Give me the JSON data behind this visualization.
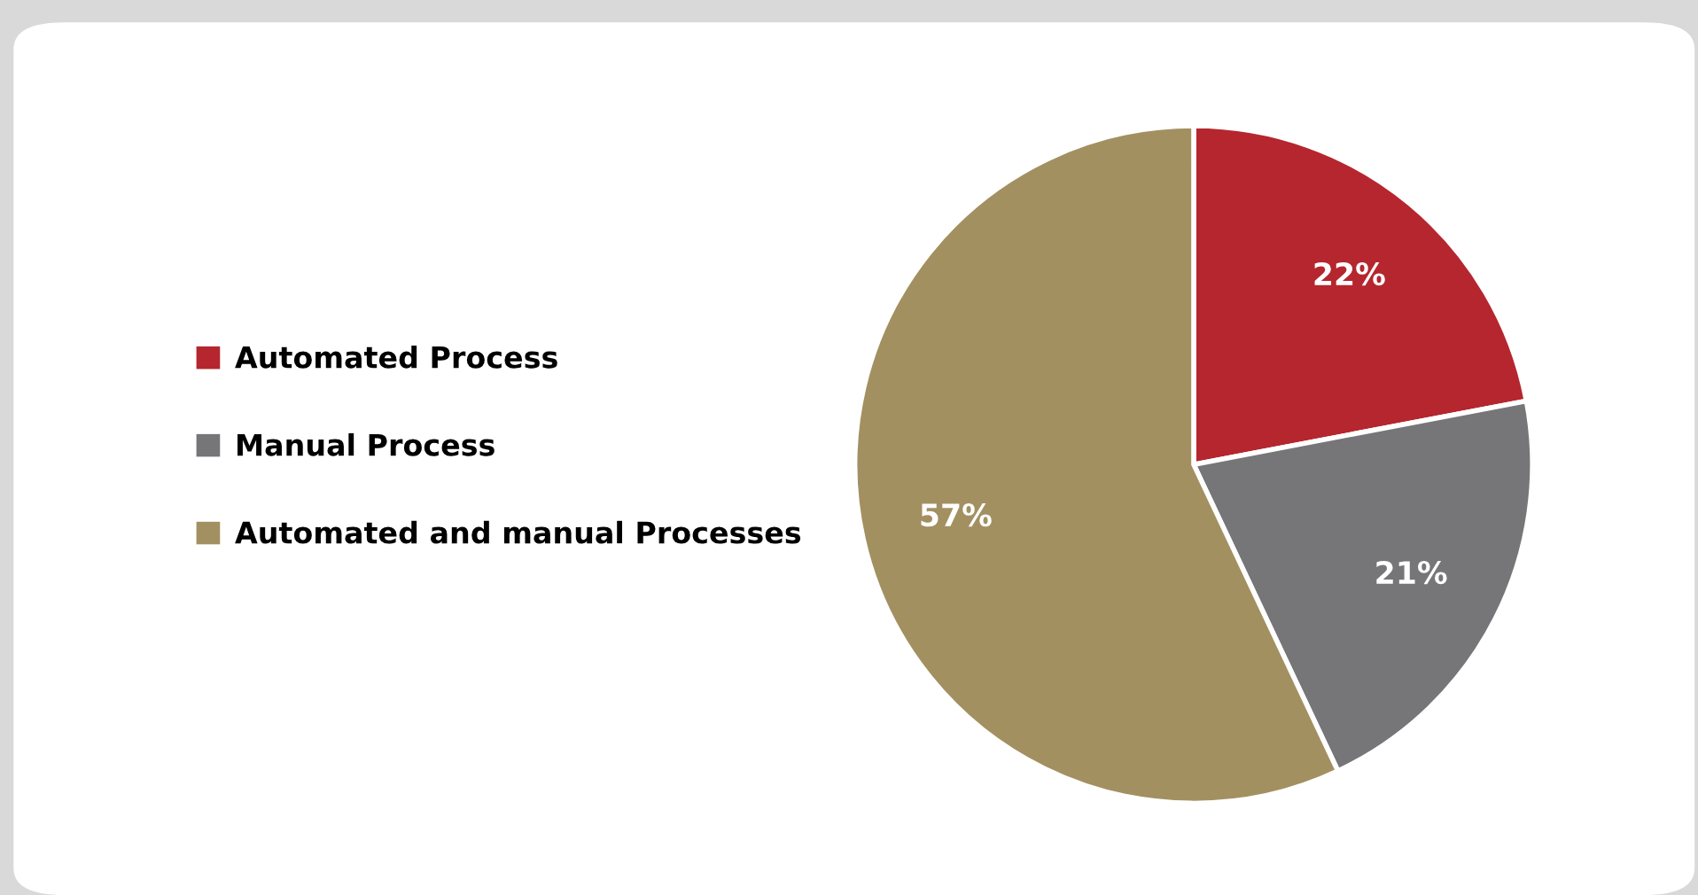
{
  "chart_data": {
    "type": "pie",
    "categories": [
      "Automated Process",
      "Manual Process",
      "Automated and manual Processes"
    ],
    "values": [
      22,
      21,
      57
    ],
    "colors": [
      "#b5262e",
      "#767577",
      "#a39061"
    ],
    "value_labels": [
      "22%",
      "21%",
      "57%"
    ],
    "legend": "left"
  }
}
